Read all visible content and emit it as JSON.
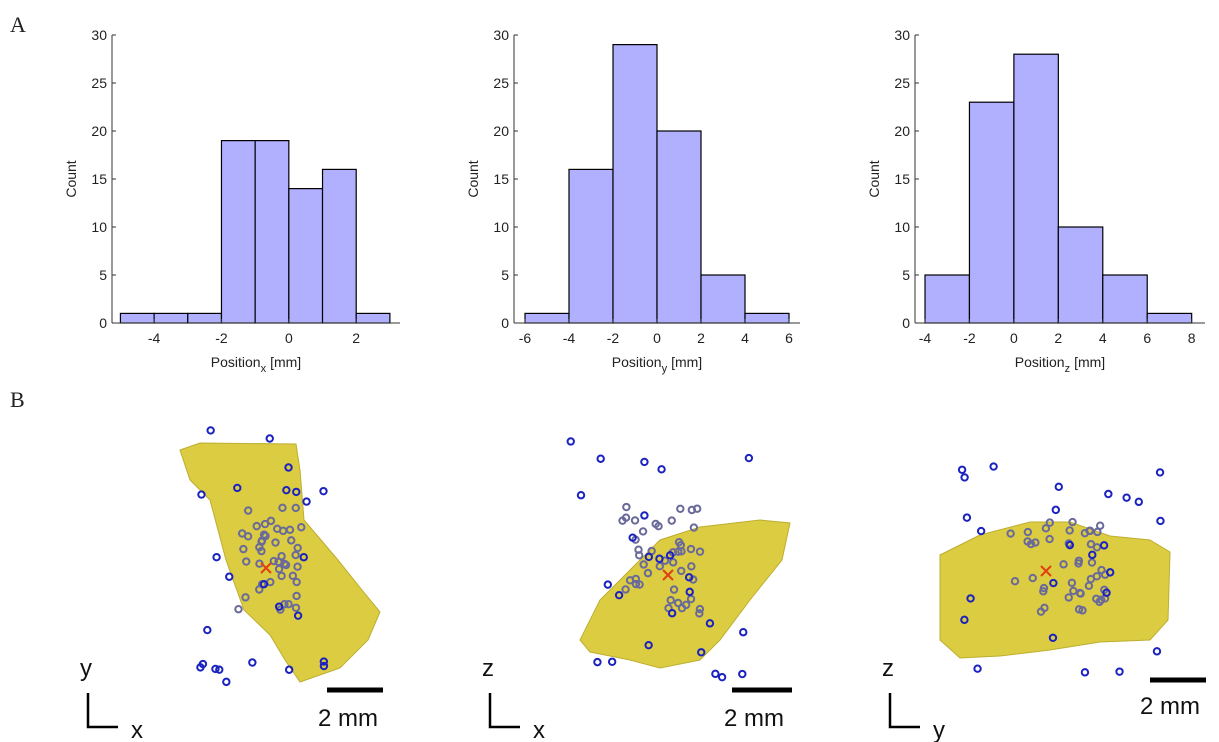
{
  "panel_labels": [
    "A",
    "B"
  ],
  "views": [
    {
      "vertical": "y",
      "horizontal": "x",
      "scale_bar": "2 mm"
    },
    {
      "vertical": "z",
      "horizontal": "x",
      "scale_bar": "2 mm"
    },
    {
      "vertical": "z",
      "horizontal": "y",
      "scale_bar": "2 mm"
    }
  ],
  "chart_data": [
    {
      "type": "histogram",
      "bins": [
        -5,
        -4,
        -3,
        -2,
        -1,
        0,
        1,
        2,
        3
      ],
      "values": [
        1,
        1,
        1,
        19,
        19,
        14,
        16,
        1
      ],
      "color": "#b0b0ff",
      "xlim": [
        -5.25,
        3.3
      ],
      "xticks": [
        -4,
        -2,
        0,
        2
      ],
      "ylim": [
        0,
        30
      ],
      "yticks": [
        0,
        5,
        10,
        15,
        20,
        25,
        30
      ],
      "x_label": "Position",
      "x_label_subscript": "x",
      "x_label_unit": "[mm]",
      "y_label": "Count"
    },
    {
      "type": "histogram",
      "bins": [
        -6,
        -4,
        -2,
        0,
        2,
        4,
        6
      ],
      "values": [
        1,
        16,
        29,
        20,
        5,
        1
      ],
      "color": "#b0b0ff",
      "xlim": [
        -6.5,
        6.5
      ],
      "xticks": [
        -6,
        -4,
        -2,
        0,
        2,
        4,
        6
      ],
      "ylim": [
        0,
        30
      ],
      "yticks": [
        0,
        5,
        10,
        15,
        20,
        25,
        30
      ],
      "x_label": "Position",
      "x_label_subscript": "y",
      "x_label_unit": "[mm]",
      "y_label": "Count"
    },
    {
      "type": "histogram",
      "bins": [
        -4,
        -2,
        0,
        2,
        4,
        6,
        8
      ],
      "values": [
        5,
        23,
        28,
        10,
        5,
        1
      ],
      "color": "#b0b0ff",
      "xlim": [
        -4.45,
        8.6
      ],
      "xticks": [
        -4,
        -2,
        0,
        2,
        4,
        6,
        8
      ],
      "ylim": [
        0,
        30
      ],
      "yticks": [
        0,
        5,
        10,
        15,
        20,
        25,
        30
      ],
      "x_label": "Position",
      "x_label_subscript": "z",
      "x_label_unit": "[mm]",
      "y_label": "Count"
    }
  ]
}
